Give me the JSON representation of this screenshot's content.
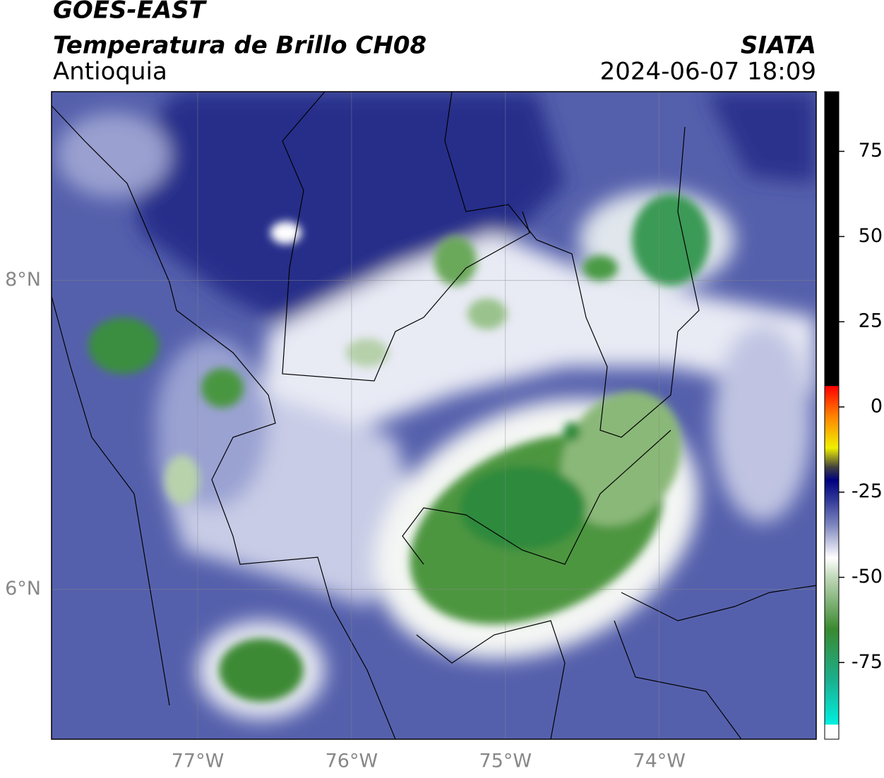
{
  "header": {
    "source": "GOES-EAST",
    "title": "Temperatura de Brillo CH08",
    "region": "Antioquia",
    "agency": "SIATA",
    "datetime": "2024-06-07 18:09"
  },
  "map": {
    "lonlim": [
      -77.95,
      -72.98
    ],
    "latlim": [
      5.03,
      9.22
    ],
    "grid": true,
    "lonticks": [
      {
        "value": -77,
        "label": "77°W"
      },
      {
        "value": -76,
        "label": "76°W"
      },
      {
        "value": -75,
        "label": "75°W"
      },
      {
        "value": -74,
        "label": "74°W"
      }
    ],
    "latticks": [
      {
        "value": 8,
        "label": "8°N"
      },
      {
        "value": 6,
        "label": "6°N"
      }
    ]
  },
  "colorbar": {
    "lim": [
      -97.5,
      92.5
    ],
    "ticks": [
      75,
      50,
      25,
      0,
      -25,
      -50,
      -75
    ]
  }
}
